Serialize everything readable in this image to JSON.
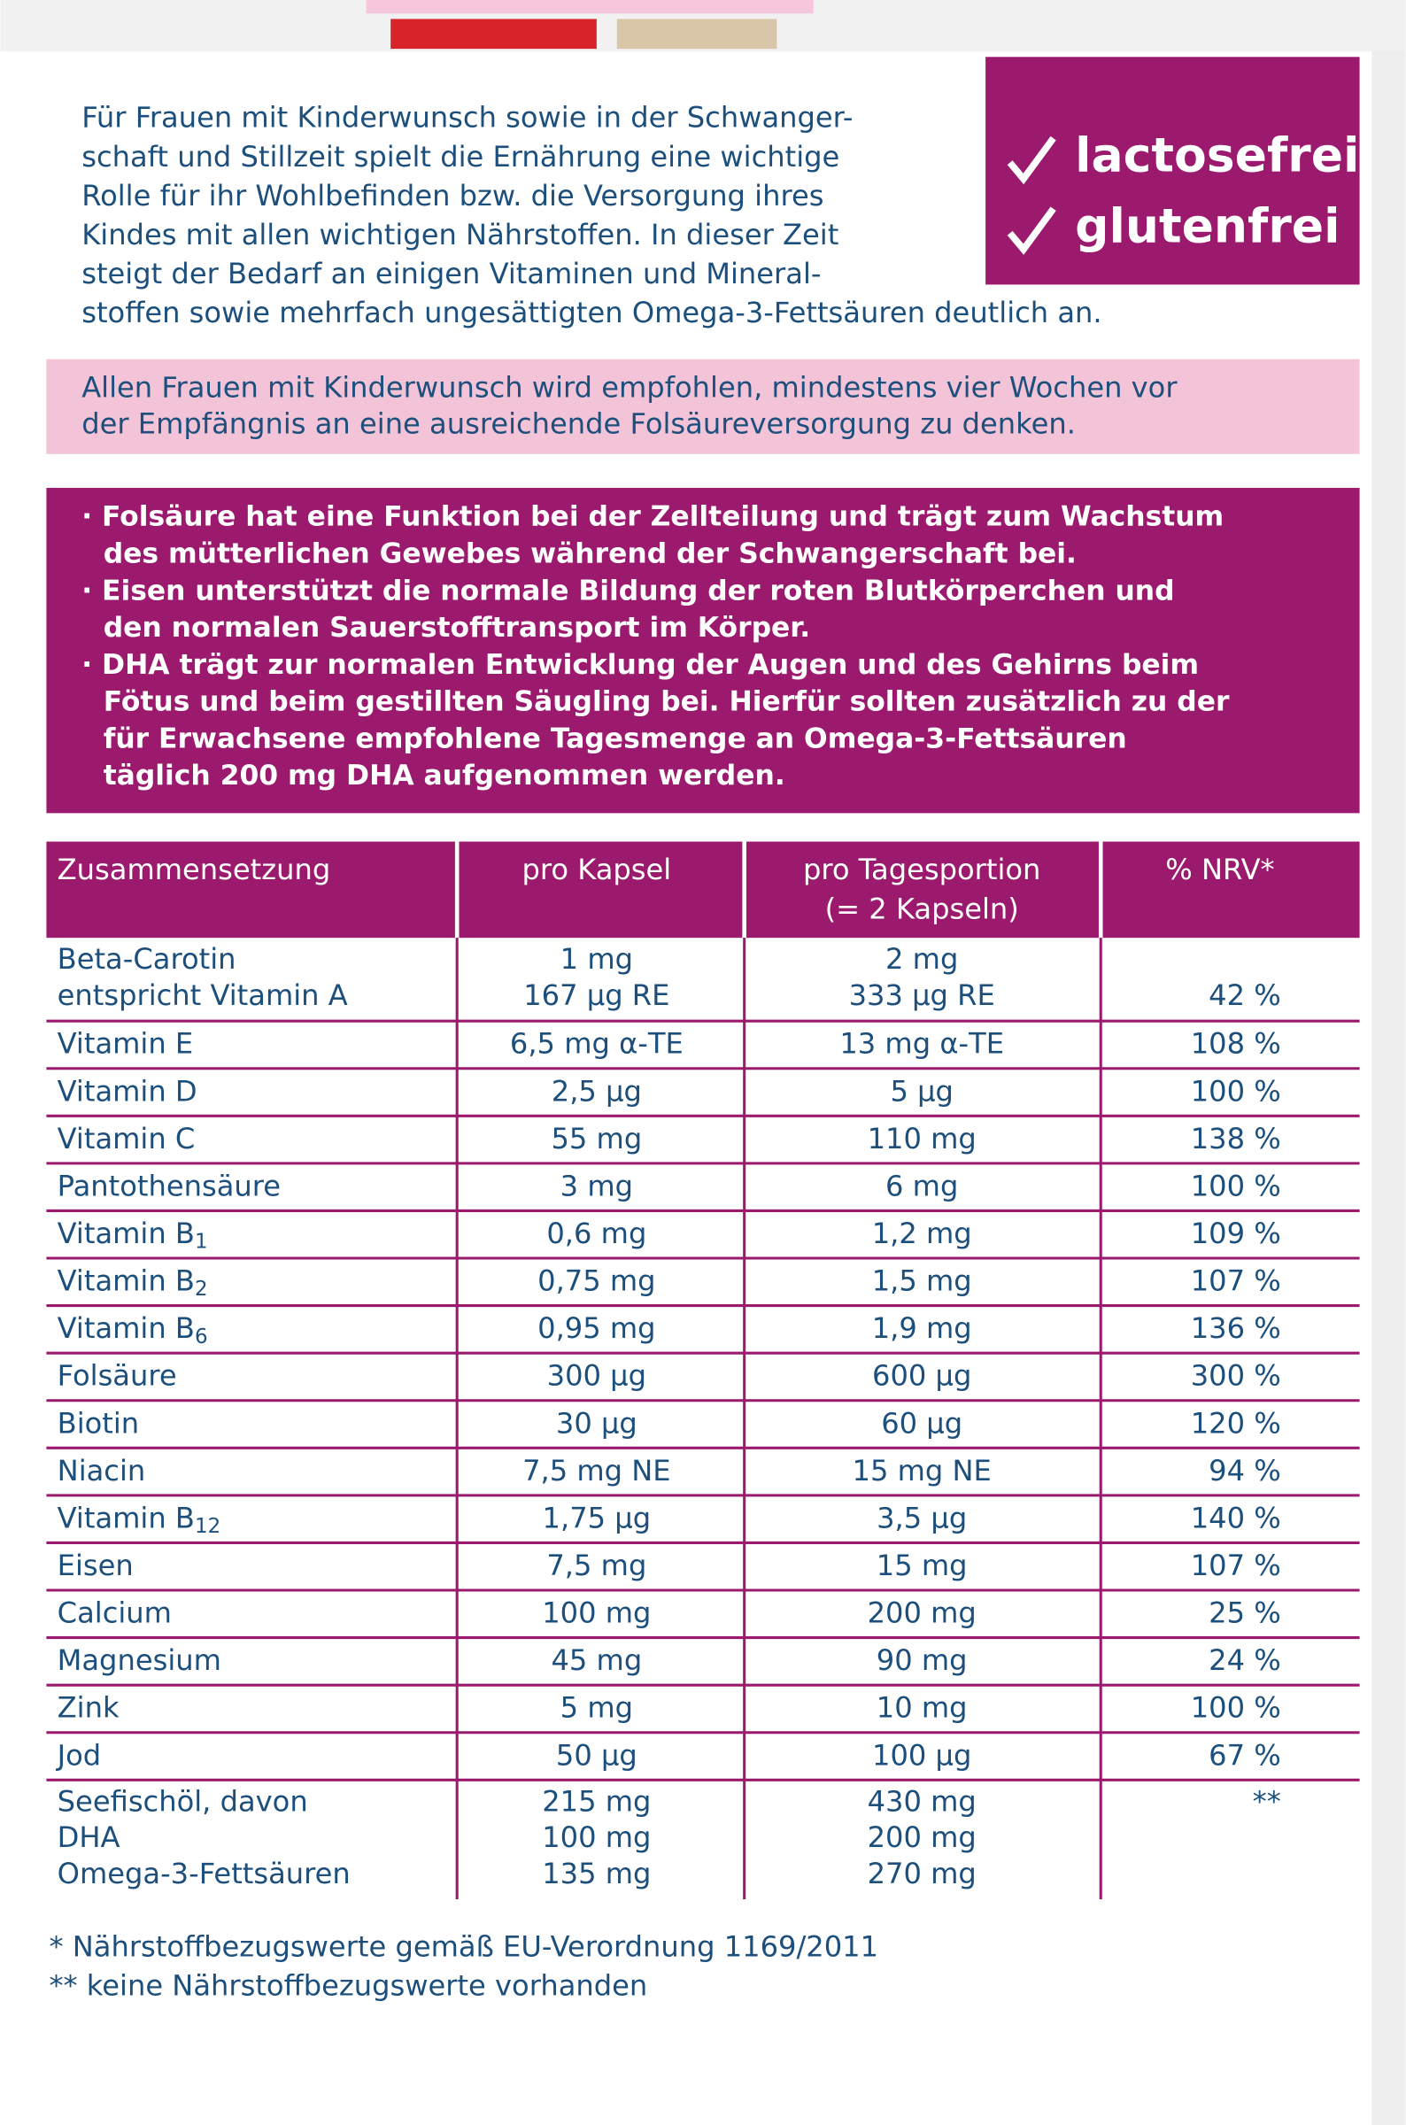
{
  "intro": {
    "lines": [
      "Für Frauen mit Kinderwunsch sowie in der Schwanger-",
      "schaft und Stillzeit spielt die Ernährung eine wichtige",
      "Rolle für ihr Wohlbefinden bzw. die Versorgung ihres",
      "Kindes mit allen wichtigen Nährstoffen. In dieser Zeit",
      "steigt der Bedarf an einigen Vitaminen und Mineral-",
      "stoffen sowie mehrfach ungesättigten Omega-3-Fettsäuren deutlich an."
    ]
  },
  "badges": [
    "lactosefrei",
    "glutenfrei"
  ],
  "recommendation": {
    "lines": [
      "Allen Frauen mit Kinderwunsch wird empfohlen, mindestens vier Wochen vor",
      "der Empfängnis an eine ausreichende Folsäureversorgung zu denken."
    ]
  },
  "benefits": {
    "lines": [
      "· Folsäure hat eine Funktion bei der Zellteilung und trägt zum Wachstum",
      "des mütterlichen Gewebes während der Schwangerschaft bei.",
      "· Eisen unterstützt die normale Bildung der roten Blutkörperchen und",
      "den normalen Sauerstofftransport im Körper.",
      "· DHA trägt zur normalen Entwicklung der Augen und des Gehirns beim",
      "Fötus und beim gestillten Säugling bei. Hierfür sollten zusätzlich zu der",
      "für Erwachsene empfohlene Tagesmenge an Omega-3-Fettsäuren",
      "täglich 200 mg DHA aufgenommen werden."
    ]
  },
  "table": {
    "header": [
      [
        "Zusammensetzung"
      ],
      [
        "pro Kapsel"
      ],
      [
        "pro Tagesportion",
        "(= 2 Kapseln)"
      ],
      [
        "% NRV*"
      ]
    ],
    "rows": [
      {
        "name": [
          "Beta-Carotin",
          "entspricht Vitamin A"
        ],
        "per_capsule": [
          "1 mg",
          "167 µg RE"
        ],
        "per_day": [
          "2 mg",
          "333 µg RE"
        ],
        "nrv": "42 %"
      },
      {
        "name": [
          "Vitamin E"
        ],
        "per_capsule": [
          "6,5 mg α-TE"
        ],
        "per_day": [
          "13 mg α-TE"
        ],
        "nrv": "108 %"
      },
      {
        "name": [
          "Vitamin D"
        ],
        "per_capsule": [
          "2,5 µg"
        ],
        "per_day": [
          "5 µg"
        ],
        "nrv": "100 %"
      },
      {
        "name": [
          "Vitamin C"
        ],
        "per_capsule": [
          "55 mg"
        ],
        "per_day": [
          "110 mg"
        ],
        "nrv": "138 %"
      },
      {
        "name": [
          "Pantothensäure"
        ],
        "per_capsule": [
          "3 mg"
        ],
        "per_day": [
          "6 mg"
        ],
        "nrv": "100 %"
      },
      {
        "name": [
          "Vitamin B"
        ],
        "sub": "1",
        "per_capsule": [
          "0,6 mg"
        ],
        "per_day": [
          "1,2 mg"
        ],
        "nrv": "109 %"
      },
      {
        "name": [
          "Vitamin B"
        ],
        "sub": "2",
        "per_capsule": [
          "0,75 mg"
        ],
        "per_day": [
          "1,5 mg"
        ],
        "nrv": "107 %"
      },
      {
        "name": [
          "Vitamin B"
        ],
        "sub": "6",
        "per_capsule": [
          "0,95 mg"
        ],
        "per_day": [
          "1,9 mg"
        ],
        "nrv": "136 %"
      },
      {
        "name": [
          "Folsäure"
        ],
        "per_capsule": [
          "300 µg"
        ],
        "per_day": [
          "600 µg"
        ],
        "nrv": "300 %"
      },
      {
        "name": [
          "Biotin"
        ],
        "per_capsule": [
          "30 µg"
        ],
        "per_day": [
          "60 µg"
        ],
        "nrv": "120 %"
      },
      {
        "name": [
          "Niacin"
        ],
        "per_capsule": [
          "7,5 mg NE"
        ],
        "per_day": [
          "15 mg NE"
        ],
        "nrv": "94 %"
      },
      {
        "name": [
          "Vitamin B"
        ],
        "sub": "12",
        "per_capsule": [
          "1,75 µg"
        ],
        "per_day": [
          "3,5 µg"
        ],
        "nrv": "140 %"
      },
      {
        "name": [
          "Eisen"
        ],
        "per_capsule": [
          "7,5 mg"
        ],
        "per_day": [
          "15 mg"
        ],
        "nrv": "107 %"
      },
      {
        "name": [
          "Calcium"
        ],
        "per_capsule": [
          "100 mg"
        ],
        "per_day": [
          "200 mg"
        ],
        "nrv": "25 %"
      },
      {
        "name": [
          "Magnesium"
        ],
        "per_capsule": [
          "45 mg"
        ],
        "per_day": [
          "90 mg"
        ],
        "nrv": "24 %"
      },
      {
        "name": [
          "Zink"
        ],
        "per_capsule": [
          "5 mg"
        ],
        "per_day": [
          "10 mg"
        ],
        "nrv": "100 %"
      },
      {
        "name": [
          "Jod"
        ],
        "per_capsule": [
          "50 µg"
        ],
        "per_day": [
          "100 µg"
        ],
        "nrv": "67 %"
      },
      {
        "name": [
          "Seefischöl, davon",
          "DHA",
          "Omega-3-Fettsäuren"
        ],
        "per_capsule": [
          "215 mg",
          "100 mg",
          "135 mg"
        ],
        "per_day": [
          "430 mg",
          "200 mg",
          "270 mg"
        ],
        "nrv": "**"
      }
    ]
  },
  "footnotes": [
    "*   Nährstoffbezugswerte gemäß EU-Verordnung 1169/2011",
    "** keine Nährstoffbezugswerte vorhanden"
  ]
}
